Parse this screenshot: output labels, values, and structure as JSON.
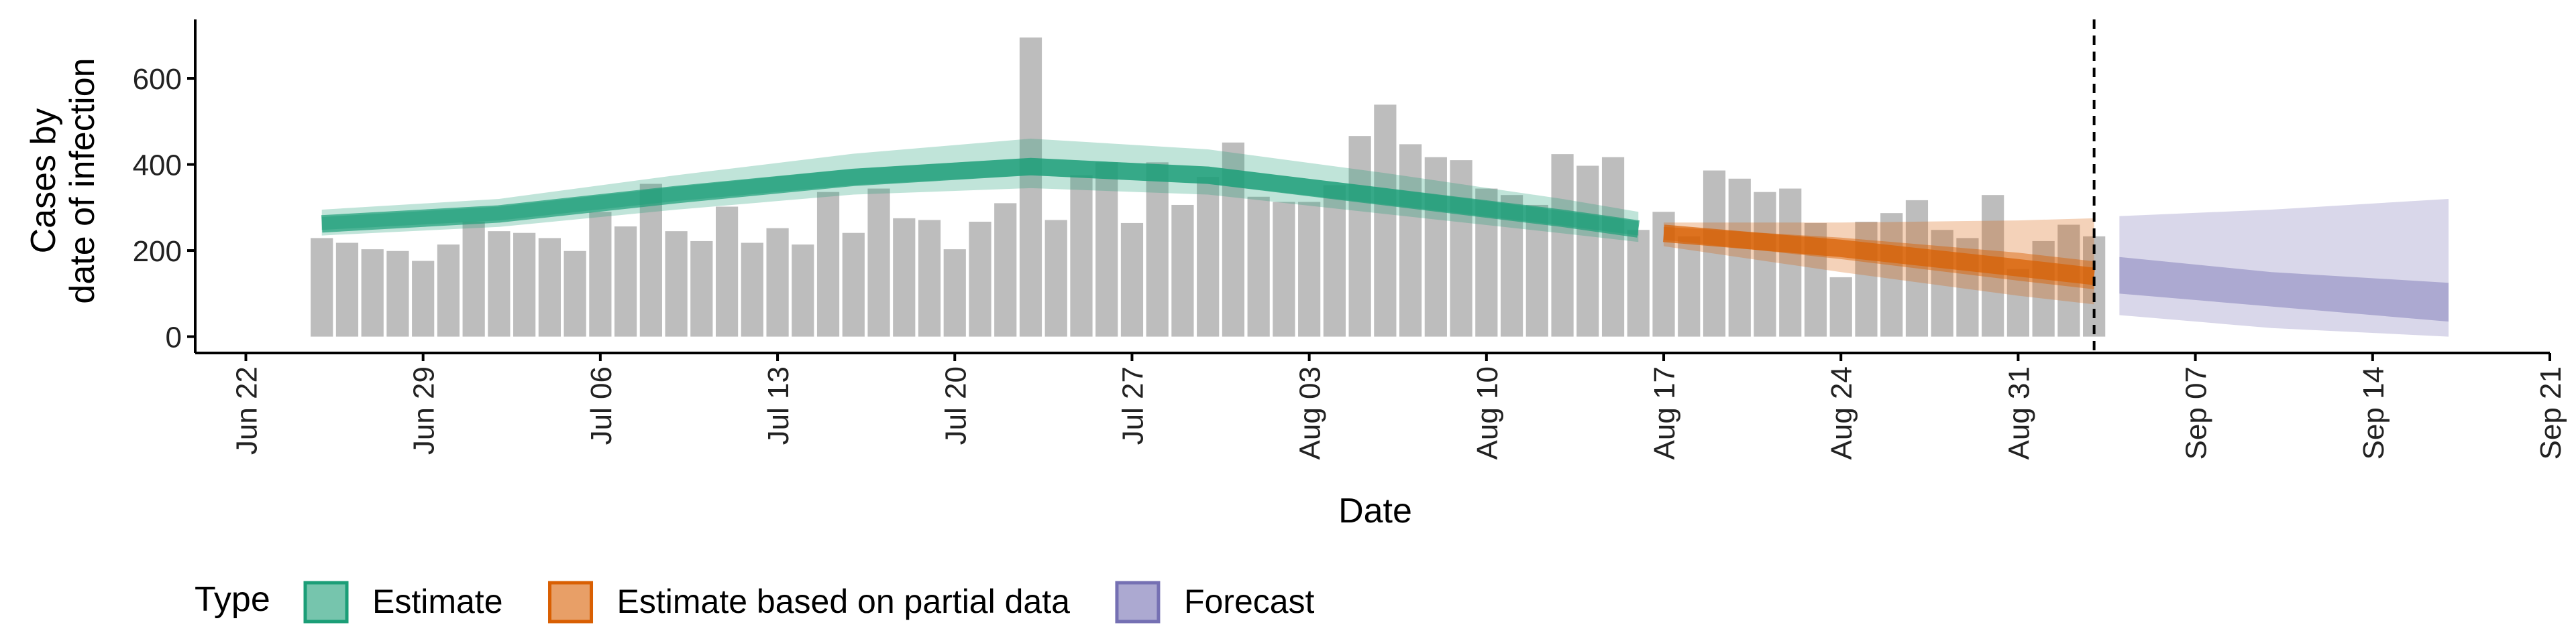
{
  "chart_data": {
    "type": "epi-ribbon",
    "ylabel": [
      "Cases by",
      "date of infection"
    ],
    "xlabel": "Date",
    "legend_title": "Type",
    "ylim": [
      -38,
      737
    ],
    "yticks": [
      0,
      200,
      400,
      600
    ],
    "xlim": [
      "Jun 20",
      "Sep 21"
    ],
    "xticks": [
      "Jun 22",
      "Jun 29",
      "Jul 06",
      "Jul 13",
      "Jul 20",
      "Jul 27",
      "Aug 03",
      "Aug 10",
      "Aug 17",
      "Aug 24",
      "Aug 31",
      "Sep 07",
      "Sep 14",
      "Sep 21"
    ],
    "vline_x": "Sep 03",
    "bars": {
      "color": "#bdbdbd",
      "x": [
        "Jun 25",
        "Jun 26",
        "Jun 27",
        "Jun 28",
        "Jun 29",
        "Jun 30",
        "Jul 01",
        "Jul 02",
        "Jul 03",
        "Jul 04",
        "Jul 05",
        "Jul 06",
        "Jul 07",
        "Jul 08",
        "Jul 09",
        "Jul 10",
        "Jul 11",
        "Jul 12",
        "Jul 13",
        "Jul 14",
        "Jul 15",
        "Jul 16",
        "Jul 17",
        "Jul 18",
        "Jul 19",
        "Jul 20",
        "Jul 21",
        "Jul 22",
        "Jul 23",
        "Jul 24",
        "Jul 25",
        "Jul 26",
        "Jul 27",
        "Jul 28",
        "Jul 29",
        "Jul 30",
        "Jul 31",
        "Aug 01",
        "Aug 02",
        "Aug 03",
        "Aug 04",
        "Aug 05",
        "Aug 06",
        "Aug 07",
        "Aug 08",
        "Aug 09",
        "Aug 10",
        "Aug 11",
        "Aug 12",
        "Aug 13",
        "Aug 14",
        "Aug 15",
        "Aug 16",
        "Aug 17",
        "Aug 18",
        "Aug 19",
        "Aug 20",
        "Aug 21",
        "Aug 22",
        "Aug 23",
        "Aug 24",
        "Aug 25",
        "Aug 26",
        "Aug 27",
        "Aug 28",
        "Aug 29",
        "Aug 30",
        "Aug 31",
        "Sep 01",
        "Sep 02",
        "Sep 03"
      ],
      "values": [
        229,
        218,
        203,
        199,
        176,
        214,
        267,
        245,
        241,
        229,
        199,
        290,
        256,
        355,
        245,
        222,
        302,
        218,
        252,
        214,
        336,
        241,
        344,
        275,
        271,
        203,
        267,
        310,
        695,
        271,
        375,
        405,
        264,
        405,
        306,
        371,
        451,
        325,
        313,
        313,
        352,
        466,
        539,
        447,
        417,
        410,
        344,
        329,
        306,
        424,
        397,
        417,
        248,
        290,
        233,
        386,
        367,
        336,
        344,
        264,
        138,
        267,
        287,
        317,
        248,
        229,
        329,
        157,
        222,
        260,
        233
      ]
    },
    "series": [
      {
        "name": "Estimate",
        "color": "#1b9e77",
        "x": [
          "Jun 25",
          "Jul 02",
          "Jul 09",
          "Jul 16",
          "Jul 23",
          "Jul 30",
          "Aug 06",
          "Aug 13",
          "Aug 16"
        ],
        "median": [
          262,
          285,
          330,
          370,
          395,
          375,
          325,
          275,
          250
        ],
        "lower90": [
          235,
          255,
          295,
          330,
          345,
          330,
          285,
          240,
          220
        ],
        "upper90": [
          295,
          320,
          375,
          425,
          460,
          435,
          380,
          320,
          290
        ],
        "lower50": [
          248,
          270,
          315,
          352,
          375,
          355,
          307,
          258,
          235
        ],
        "upper50": [
          278,
          302,
          348,
          390,
          415,
          395,
          345,
          292,
          268
        ]
      },
      {
        "name": "Estimate based on partial data",
        "color": "#d95f02",
        "x": [
          "Aug 17",
          "Aug 24",
          "Aug 31",
          "Sep 03"
        ],
        "median": [
          240,
          205,
          160,
          140
        ],
        "lower90": [
          210,
          150,
          95,
          75
        ],
        "upper90": [
          265,
          265,
          270,
          275
        ],
        "lower50": [
          225,
          180,
          130,
          110
        ],
        "upper50": [
          255,
          230,
          195,
          175
        ]
      },
      {
        "name": "Forecast",
        "color": "#7570b3",
        "x": [
          "Sep 04",
          "Sep 10",
          "Sep 17"
        ],
        "lower90": [
          50,
          20,
          0
        ],
        "upper90": [
          280,
          295,
          320
        ],
        "lower50": [
          100,
          70,
          35
        ],
        "upper50": [
          185,
          150,
          125
        ]
      }
    ]
  }
}
